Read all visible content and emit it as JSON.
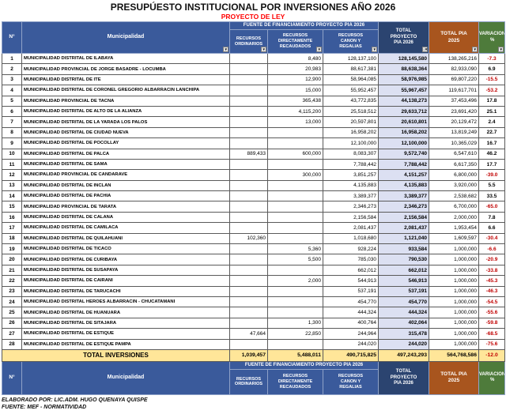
{
  "title": "PRESUPÚESTO INSTITUCIONAL POR INVERSIONES AÑO 2026",
  "subtitle": "PROYECTO DE LEY",
  "icons": {
    "filter": "▼",
    "sort_filter": "↓▼"
  },
  "colors": {
    "header_blue": "#3a5a9b",
    "header_navy": "#2b4470",
    "header_brown": "#a8551e",
    "header_green": "#4e7b3b",
    "total_row_bg": "#ffe699",
    "pia2026_col_bg": "#dce0f2",
    "negative_value": "#c00000",
    "subtitle_red": "#ff0000"
  },
  "table": {
    "headers": {
      "num": "N°",
      "municipality": "Municipalidad",
      "funding_group": "FUENTE DE FINANCIAMIENTO PROYECTO PIA 2026",
      "col_ordinarios": "RECURSOS ORDINARIOS",
      "col_recaudados": "RECURSOS DIRECTAMENTE RECAUDADOS",
      "col_canon": "RECURSOS CANON Y REGALIAS",
      "col_total_2026": "TOTAL PROYECTO PIA 2026",
      "col_total_2025": "TOTAL PIA 2025",
      "col_variacion": "VARIACION %"
    },
    "rows": [
      [
        "1",
        "MUNICIPALIDAD DISTRITAL DE ILABAYA",
        "",
        "8,480",
        "128,137,100",
        "128,145,580",
        "138,265,216",
        "-7.3"
      ],
      [
        "2",
        "MUNICIPALIDAD PROVINCIAL DE JORGE BASADRE - LOCUMBA",
        "",
        "20,983",
        "88,617,381",
        "88,638,364",
        "82,933,090",
        "6.9"
      ],
      [
        "3",
        "MUNICIPALIDAD DISTRITAL DE ITE",
        "",
        "12,900",
        "58,964,085",
        "58,976,985",
        "69,807,220",
        "-15.5"
      ],
      [
        "4",
        "MUNICIPALIDAD DISTRITAL DE CORONEL GREGORIO ALBARRACIN LANCHIPA",
        "",
        "15,000",
        "55,952,457",
        "55,967,457",
        "119,617,701",
        "-53.2"
      ],
      [
        "5",
        "MUNICIPALIDAD PROVINCIAL DE TACNA",
        "",
        "365,438",
        "43,772,835",
        "44,138,273",
        "37,453,496",
        "17.8"
      ],
      [
        "6",
        "MUNICIPALIDAD DISTRITAL DE ALTO DE LA ALIANZA",
        "",
        "4,115,200",
        "25,518,512",
        "29,633,712",
        "23,691,420",
        "25.1"
      ],
      [
        "7",
        "MUNICIPALIDAD DISTRITAL DE LA YARADA LOS PALOS",
        "",
        "13,000",
        "20,597,801",
        "20,610,801",
        "20,129,472",
        "2.4"
      ],
      [
        "8",
        "MUNICIPALIDAD DISTRITAL DE CIUDAD NUEVA",
        "",
        "",
        "16,958,202",
        "16,958,202",
        "13,819,249",
        "22.7"
      ],
      [
        "9",
        "MUNICIPALIDAD DISTRITAL DE POCOLLAY",
        "",
        "",
        "12,100,000",
        "12,100,000",
        "10,365,029",
        "16.7"
      ],
      [
        "10",
        "MUNICIPALIDAD DISTRITAL DE PALCA",
        "889,433",
        "600,000",
        "8,083,307",
        "9,572,740",
        "6,547,610",
        "46.2"
      ],
      [
        "11",
        "MUNICIPALIDAD DISTRITAL DE SAMA",
        "",
        "",
        "7,788,442",
        "7,788,442",
        "6,617,350",
        "17.7"
      ],
      [
        "12",
        "MUNICIPALIDAD PROVINCIAL DE CANDARAVE",
        "",
        "300,000",
        "3,851,257",
        "4,151,257",
        "6,800,000",
        "-39.0"
      ],
      [
        "13",
        "MUNICIPALIDAD DISTRITAL DE INCLAN",
        "",
        "",
        "4,135,883",
        "4,135,883",
        "3,920,000",
        "5.5"
      ],
      [
        "14",
        "MUNICIPALIDAD DISTRITAL DE PACHIA",
        "",
        "",
        "3,389,377",
        "3,389,377",
        "2,538,682",
        "33.5"
      ],
      [
        "15",
        "MUNICIPALIDAD PROVINCIAL DE TARATA",
        "",
        "",
        "2,346,273",
        "2,346,273",
        "6,700,000",
        "-65.0"
      ],
      [
        "16",
        "MUNICIPALIDAD DISTRITAL DE CALANA",
        "",
        "",
        "2,156,584",
        "2,156,584",
        "2,000,000",
        "7.8"
      ],
      [
        "17",
        "MUNICIPALIDAD DISTRITAL DE CAMILACA",
        "",
        "",
        "2,081,437",
        "2,081,437",
        "1,953,454",
        "6.6"
      ],
      [
        "18",
        "MUNICIPALIDAD DISTRITAL DE QUILAHUANI",
        "102,360",
        "",
        "1,018,680",
        "1,121,040",
        "1,609,597",
        "-30.4"
      ],
      [
        "19",
        "MUNICIPALIDAD DISTRITAL DE TICACO",
        "",
        "5,360",
        "928,224",
        "933,584",
        "1,000,000",
        "-6.6"
      ],
      [
        "20",
        "MUNICIPALIDAD DISTRITAL DE CURIBAYA",
        "",
        "5,500",
        "785,030",
        "790,530",
        "1,000,000",
        "-20.9"
      ],
      [
        "21",
        "MUNICIPALIDAD DISTRITAL DE SUSAPAYA",
        "",
        "",
        "662,012",
        "662,012",
        "1,000,000",
        "-33.8"
      ],
      [
        "22",
        "MUNICIPALIDAD DISTRITAL DE CAIRANI",
        "",
        "2,000",
        "544,913",
        "546,913",
        "1,000,000",
        "-45.3"
      ],
      [
        "23",
        "MUNICIPALIDAD DISTRITAL DE TARUCACHI",
        "",
        "",
        "537,191",
        "537,191",
        "1,000,000",
        "-46.3"
      ],
      [
        "24",
        "MUNICIPALIDAD DISTRITAL HEROES ALBARRACIN - CHUCATAMANI",
        "",
        "",
        "454,770",
        "454,770",
        "1,000,000",
        "-54.5"
      ],
      [
        "25",
        "MUNICIPALIDAD DISTRITAL DE HUANUARA",
        "",
        "",
        "444,324",
        "444,324",
        "1,000,000",
        "-55.6"
      ],
      [
        "26",
        "MUNICIPALIDAD DISTRITAL DE SITAJARA",
        "",
        "1,300",
        "400,764",
        "402,064",
        "1,000,000",
        "-59.8"
      ],
      [
        "27",
        "MUNICIPALIDAD DISTRITAL DE ESTIQUE",
        "47,664",
        "22,850",
        "244,964",
        "315,478",
        "1,000,000",
        "-68.5"
      ],
      [
        "28",
        "MUNICIPALIDAD DISTRITAL DE ESTIQUE PAMPA",
        "",
        "",
        "244,020",
        "244,020",
        "1,000,000",
        "-75.6"
      ]
    ],
    "total": {
      "label": "TOTAL INVERSIONES",
      "ordinarios": "1,039,457",
      "recaudados": "5,488,011",
      "canon": "490,715,825",
      "total_2026": "497,243,293",
      "total_2025": "564,768,586",
      "variacion": "-12.0"
    }
  },
  "footer": {
    "line1": "ELABORADO POR: LIC.ADM. HUGO QUENAYA QUISPE",
    "line2": "FUENTE: MEF -  NORMATIVIDAD"
  }
}
